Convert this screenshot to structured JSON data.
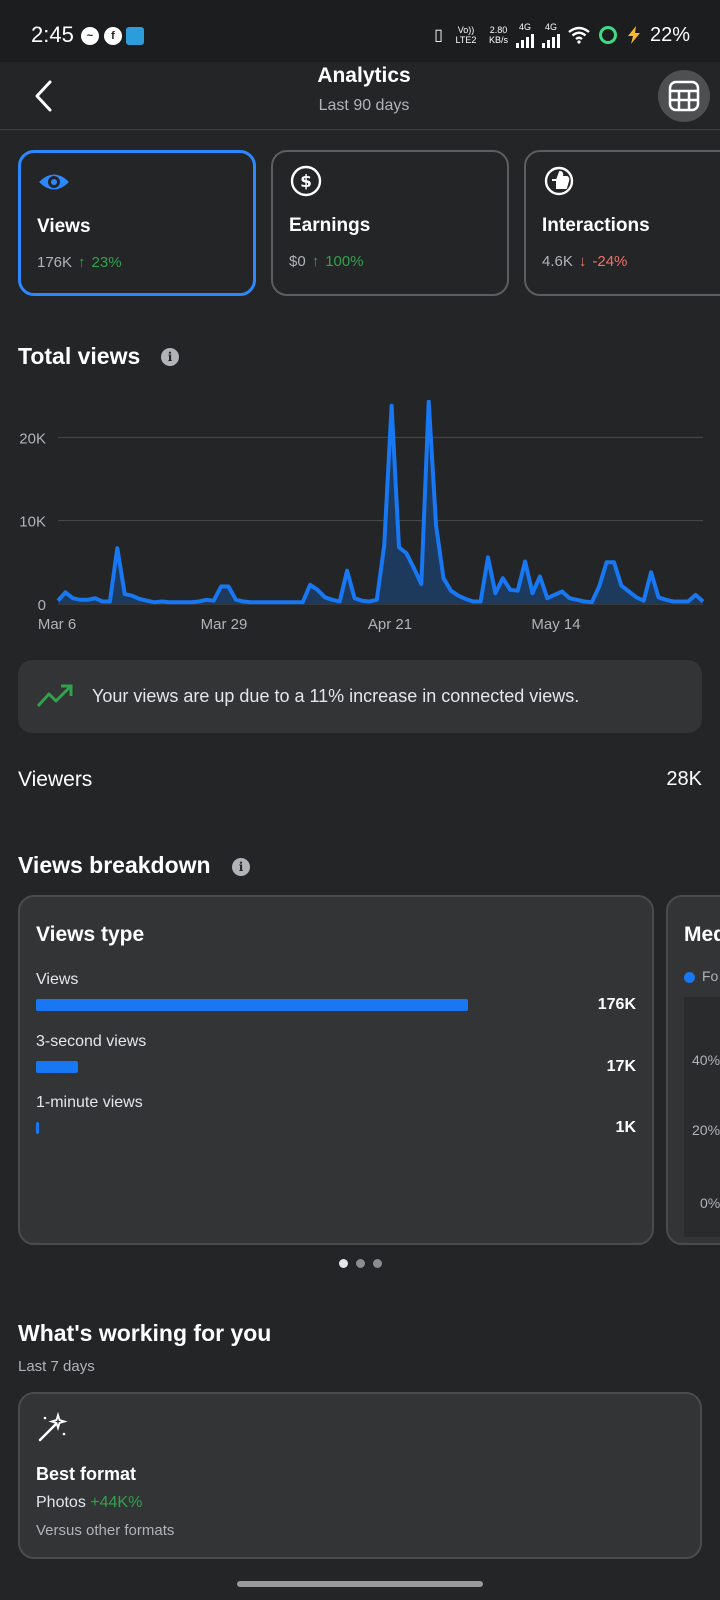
{
  "status_bar": {
    "time": "2:45",
    "net_label": "Vo)) LTE2",
    "speed_value": "2.80",
    "speed_unit": "KB/s",
    "sig1": "4G",
    "sig2": "4G",
    "battery": "22%"
  },
  "header": {
    "title": "Analytics",
    "subtitle": "Last 90 days",
    "back_icon": "chevron-left-icon",
    "action_icon": "table-icon"
  },
  "metrics": [
    {
      "label": "Views",
      "value": "176K",
      "change": "23%",
      "direction": "up",
      "icon": "eye-icon"
    },
    {
      "label": "Earnings",
      "value": "$0",
      "change": "100%",
      "direction": "up",
      "icon": "dollar-icon"
    },
    {
      "label": "Interactions",
      "value": "4.6K",
      "change": "-24%",
      "direction": "down",
      "icon": "thumbs-up-icon"
    }
  ],
  "total_views": {
    "title": "Total views",
    "info_icon": "info-icon"
  },
  "chart_data": {
    "type": "area",
    "ylim": [
      0,
      24000
    ],
    "grid": true,
    "y_ticks": [
      "0",
      "10K",
      "20K"
    ],
    "x_ticks": [
      "Mar 6",
      "Mar 29",
      "Apr 21",
      "May 14"
    ],
    "values": [
      400,
      1400,
      700,
      500,
      500,
      700,
      300,
      300,
      6700,
      1200,
      1000,
      600,
      400,
      200,
      300,
      200,
      200,
      200,
      200,
      300,
      500,
      400,
      2100,
      2100,
      500,
      300,
      200,
      200,
      200,
      200,
      200,
      200,
      200,
      200,
      2300,
      1700,
      800,
      500,
      300,
      4000,
      700,
      400,
      300,
      500,
      7000,
      23800,
      6800,
      6100,
      4300,
      2400,
      24300,
      9400,
      3100,
      1600,
      1000,
      600,
      300,
      300,
      5600,
      1300,
      3100,
      1700,
      1600,
      5100,
      1300,
      3300,
      700,
      1100,
      1500,
      700,
      500,
      300,
      200,
      2100,
      5000,
      5000,
      2200,
      1500,
      800,
      400,
      3800,
      800,
      500,
      300,
      300,
      300,
      1100,
      300
    ],
    "colors": {
      "line": "#1877f2",
      "fill": "#1d3a5c"
    }
  },
  "insight": {
    "text": "Your views are up due to a 11% increase in connected views.",
    "icon": "trending-up-icon"
  },
  "viewers": {
    "label": "Viewers",
    "value": "28K"
  },
  "breakdown": {
    "title": "Views breakdown",
    "card_title": "Views type",
    "rows": [
      {
        "label": "Views",
        "value": "176K",
        "fraction": 1.0
      },
      {
        "label": "3-second views",
        "value": "17K",
        "fraction": 0.097
      },
      {
        "label": "1-minute views",
        "value": "1K",
        "fraction": 0.006
      }
    ],
    "card2_title": "Med",
    "card2_legend": "Fo",
    "card2_ticks": [
      "40%",
      "20%",
      "0%"
    ],
    "page_count": 3,
    "active_page": 1
  },
  "working": {
    "title": "What's working for you",
    "subtitle": "Last 7 days",
    "card_icon": "magic-wand-icon",
    "card_title": "Best format",
    "format": "Photos",
    "change": "+44K%",
    "note": "Versus other formats"
  }
}
